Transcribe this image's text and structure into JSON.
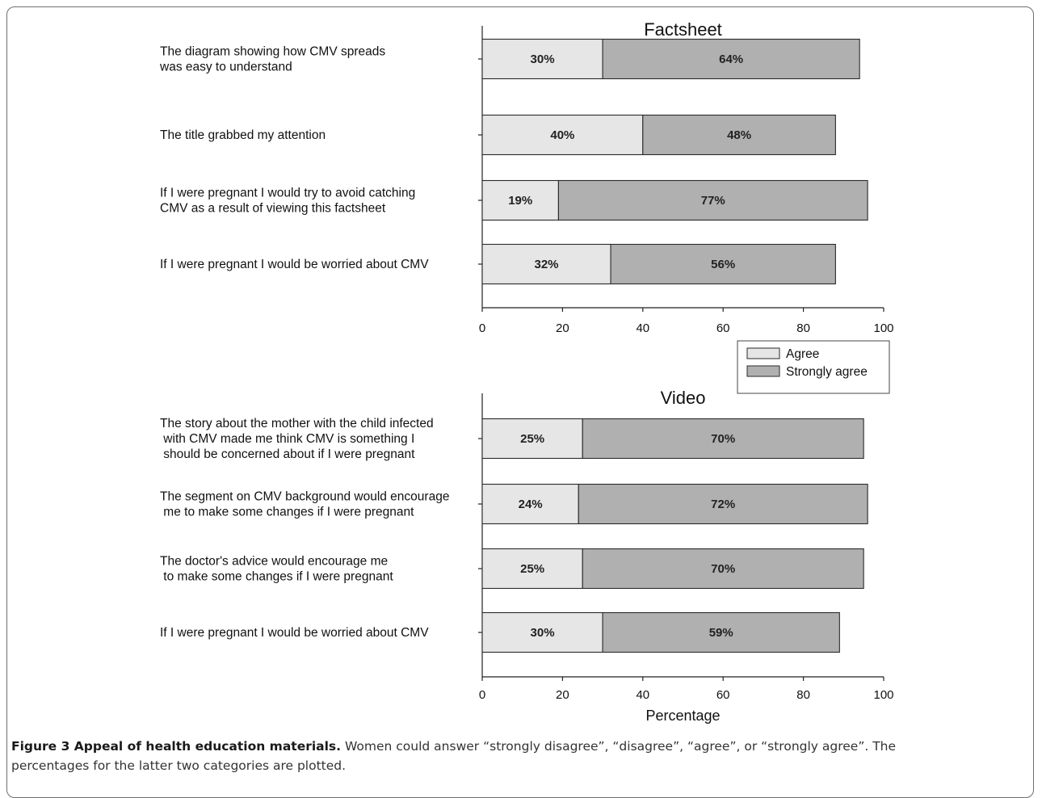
{
  "caption": {
    "label": "Figure 3 Appeal of health education materials.",
    "text": " Women could answer “strongly disagree”, “disagree”, “agree”, or “strongly agree”. The percentages for the latter two categories are plotted."
  },
  "colors": {
    "agree": "#e6e6e6",
    "strongly_agree": "#b0b0b0",
    "outline": "#2a2a2a"
  },
  "chart_data": [
    {
      "type": "bar",
      "orientation": "horizontal",
      "stacked": true,
      "title": "Factsheet",
      "xlabel": "",
      "xlim": [
        0,
        100
      ],
      "xticks": [
        0,
        20,
        40,
        60,
        80,
        100
      ],
      "categories": [
        [
          "The diagram showing how CMV spreads",
          "was easy to understand"
        ],
        [
          "The title grabbed my attention"
        ],
        [
          "If I were pregnant I would try to avoid catching",
          "CMV as a result of viewing this factsheet"
        ],
        [
          "If I were pregnant I would be worried about CMV"
        ]
      ],
      "series": [
        {
          "name": "Agree",
          "values": [
            30,
            40,
            19,
            32
          ],
          "labels": [
            "30%",
            "40%",
            "19%",
            "32%"
          ]
        },
        {
          "name": "Strongly agree",
          "values": [
            64,
            48,
            77,
            56
          ],
          "labels": [
            "64%",
            "48%",
            "77%",
            "56%"
          ]
        }
      ]
    },
    {
      "type": "bar",
      "orientation": "horizontal",
      "stacked": true,
      "title": "Video",
      "xlabel": "Percentage",
      "xlim": [
        0,
        100
      ],
      "xticks": [
        0,
        20,
        40,
        60,
        80,
        100
      ],
      "categories": [
        [
          "The story about the mother with the child infected",
          " with CMV made me think CMV is something I",
          " should be concerned about if I were pregnant"
        ],
        [
          "The segment on CMV background would encourage",
          " me to make some changes if I were pregnant"
        ],
        [
          "The doctor's advice would encourage me",
          " to make some changes if I were pregnant"
        ],
        [
          "If I were pregnant I would be worried about CMV"
        ]
      ],
      "series": [
        {
          "name": "Agree",
          "values": [
            25,
            24,
            25,
            30
          ],
          "labels": [
            "25%",
            "24%",
            "25%",
            "30%"
          ]
        },
        {
          "name": "Strongly agree",
          "values": [
            70,
            72,
            70,
            59
          ],
          "labels": [
            "70%",
            "72%",
            "70%",
            "59%"
          ]
        }
      ]
    }
  ],
  "legend": {
    "placement": "between-panels-right",
    "entries": [
      "Agree",
      "Strongly agree"
    ]
  }
}
